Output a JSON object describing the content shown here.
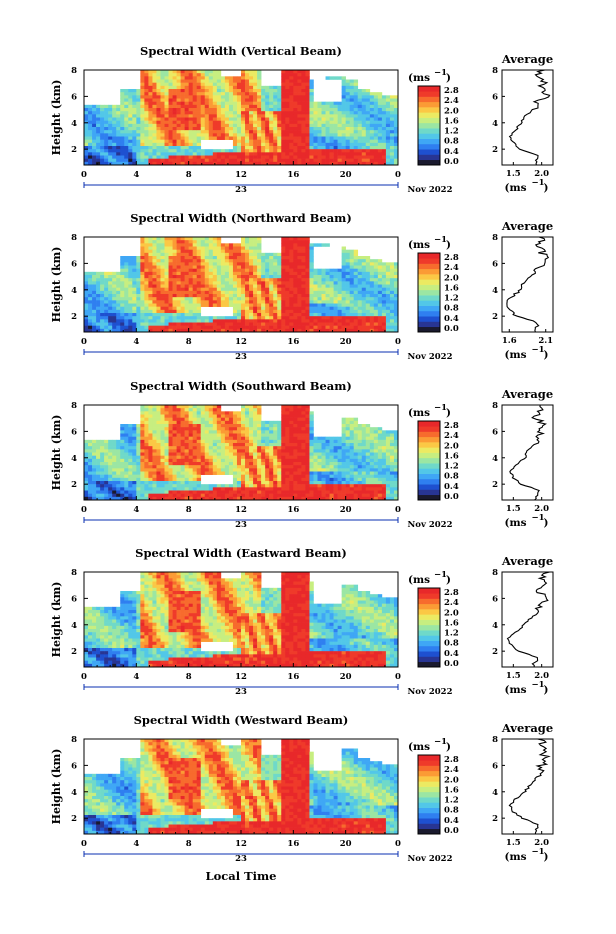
{
  "figure": {
    "xlabel": "Local Time",
    "date_label": "Nov 2022",
    "day_label": "23",
    "ylabel": "Height (km)",
    "unit_label": "(ms",
    "unit_exp": "−1",
    "avg_title": "Average"
  },
  "colorbar": {
    "ticks": [
      "2.8",
      "2.4",
      "2.0",
      "1.6",
      "1.2",
      "0.8",
      "0.4",
      "0.0"
    ],
    "colors": [
      "#1a1a2e",
      "#283593",
      "#1e50d0",
      "#2f7ff0",
      "#3fa7f5",
      "#52c7e8",
      "#6fd9c9",
      "#9be6a3",
      "#c7ee80",
      "#ecea62",
      "#fbc845",
      "#fb9b35",
      "#f76b2d",
      "#ef3a2a",
      "#e8282a"
    ]
  },
  "chart_data": [
    {
      "type": "heatmap",
      "title": "Spectral Width (Vertical Beam)",
      "x_ticks": [
        "0",
        "4",
        "8",
        "12",
        "16",
        "20",
        "0"
      ],
      "y_ticks": [
        "8",
        "6",
        "4",
        "2"
      ],
      "xlim": [
        0,
        24
      ],
      "ylim": [
        0.8,
        8
      ],
      "colorbar_range": [
        0.0,
        2.8
      ],
      "average": {
        "title": "Average",
        "x_ticks": [
          "1.5",
          "2.0"
        ],
        "xlim": [
          1.3,
          2.2
        ],
        "y_ticks": [
          "8",
          "6",
          "4",
          "2"
        ],
        "height": [
          1.0,
          1.5,
          2.0,
          2.5,
          3.0,
          3.5,
          4.0,
          4.5,
          5.0,
          5.5,
          6.0,
          6.5,
          7.0,
          7.5,
          8.0
        ],
        "value": [
          1.9,
          1.95,
          1.6,
          1.5,
          1.45,
          1.55,
          1.65,
          1.7,
          1.85,
          1.9,
          2.1,
          2.0,
          2.05,
          1.95,
          2.0
        ]
      }
    },
    {
      "type": "heatmap",
      "title": "Spectral Width (Northward Beam)",
      "x_ticks": [
        "0",
        "4",
        "8",
        "12",
        "16",
        "20",
        "0"
      ],
      "y_ticks": [
        "8",
        "6",
        "4",
        "2"
      ],
      "xlim": [
        0,
        24
      ],
      "ylim": [
        0.8,
        8
      ],
      "colorbar_range": [
        0.0,
        2.8
      ],
      "average": {
        "title": "Average",
        "x_ticks": [
          "1.6",
          "2.1"
        ],
        "xlim": [
          1.5,
          2.2
        ],
        "y_ticks": [
          "8",
          "6",
          "4",
          "2"
        ],
        "height": [
          1.0,
          1.5,
          2.0,
          2.5,
          3.0,
          3.5,
          4.0,
          4.5,
          5.0,
          5.5,
          6.0,
          6.5,
          7.0,
          7.5,
          8.0
        ],
        "value": [
          1.95,
          2.0,
          1.7,
          1.6,
          1.55,
          1.65,
          1.75,
          1.8,
          1.9,
          2.0,
          2.05,
          2.1,
          2.0,
          2.05,
          2.0
        ]
      }
    },
    {
      "type": "heatmap",
      "title": "Spectral Width (Southward Beam)",
      "x_ticks": [
        "0",
        "4",
        "8",
        "12",
        "16",
        "20",
        "0"
      ],
      "y_ticks": [
        "8",
        "6",
        "4",
        "2"
      ],
      "xlim": [
        0,
        24
      ],
      "ylim": [
        0.8,
        8
      ],
      "colorbar_range": [
        0.0,
        2.8
      ],
      "average": {
        "title": "Average",
        "x_ticks": [
          "1.5",
          "2.0"
        ],
        "xlim": [
          1.3,
          2.2
        ],
        "y_ticks": [
          "8",
          "6",
          "4",
          "2"
        ],
        "height": [
          1.0,
          1.5,
          2.0,
          2.5,
          3.0,
          3.5,
          4.0,
          4.5,
          5.0,
          5.5,
          6.0,
          6.5,
          7.0,
          7.5,
          8.0
        ],
        "value": [
          1.9,
          1.95,
          1.65,
          1.5,
          1.45,
          1.55,
          1.7,
          1.75,
          1.85,
          1.95,
          2.0,
          2.05,
          1.9,
          2.0,
          1.95
        ]
      }
    },
    {
      "type": "heatmap",
      "title": "Spectral Width (Eastward Beam)",
      "x_ticks": [
        "0",
        "4",
        "8",
        "12",
        "16",
        "20",
        "0"
      ],
      "y_ticks": [
        "8",
        "6",
        "4",
        "2"
      ],
      "xlim": [
        0,
        24
      ],
      "ylim": [
        0.8,
        8
      ],
      "colorbar_range": [
        0.0,
        2.8
      ],
      "average": {
        "title": "Average",
        "x_ticks": [
          "1.5",
          "2.0"
        ],
        "xlim": [
          1.3,
          2.2
        ],
        "y_ticks": [
          "8",
          "6",
          "4",
          "2"
        ],
        "height": [
          1.0,
          1.5,
          2.0,
          2.5,
          3.0,
          3.5,
          4.0,
          4.5,
          5.0,
          5.5,
          6.0,
          6.5,
          7.0,
          7.5,
          8.0
        ],
        "value": [
          1.85,
          1.95,
          1.6,
          1.45,
          1.4,
          1.55,
          1.7,
          1.8,
          1.95,
          2.0,
          2.05,
          1.95,
          2.05,
          2.0,
          2.1
        ]
      }
    },
    {
      "type": "heatmap",
      "title": "Spectral Width (Westward Beam)",
      "x_ticks": [
        "0",
        "4",
        "8",
        "12",
        "16",
        "20",
        "0"
      ],
      "y_ticks": [
        "8",
        "6",
        "4",
        "2"
      ],
      "xlim": [
        0,
        24
      ],
      "ylim": [
        0.8,
        8
      ],
      "colorbar_range": [
        0.0,
        2.8
      ],
      "average": {
        "title": "Average",
        "x_ticks": [
          "1.5",
          "2.0"
        ],
        "xlim": [
          1.3,
          2.2
        ],
        "y_ticks": [
          "8",
          "6",
          "4",
          "2"
        ],
        "height": [
          1.0,
          1.5,
          2.0,
          2.5,
          3.0,
          3.5,
          4.0,
          4.5,
          5.0,
          5.5,
          6.0,
          6.5,
          7.0,
          7.5,
          8.0
        ],
        "value": [
          1.9,
          1.95,
          1.65,
          1.5,
          1.45,
          1.55,
          1.7,
          1.8,
          1.9,
          1.95,
          2.0,
          2.1,
          2.0,
          2.05,
          2.0
        ]
      }
    }
  ]
}
